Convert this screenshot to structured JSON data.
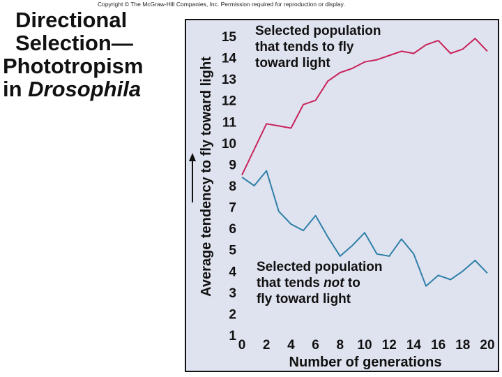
{
  "copyright": "Copyright © The McGraw-Hill Companies, Inc. Permission required for reproduction or display.",
  "title": {
    "line1": "Directional",
    "line2": "Selection—",
    "line3": "Phototropism",
    "line4_prefix": "in ",
    "line4_italic": "Drosophila"
  },
  "colors": {
    "toward": "#c8235a",
    "not_toward": "#2f7fa8",
    "panel_bg": "#dfe3ef"
  },
  "chart_data": {
    "type": "line",
    "xlabel": "Number of generations",
    "ylabel": "Average tendency to fly toward light",
    "xlim": [
      0,
      20
    ],
    "ylim": [
      1,
      15
    ],
    "xticks": [
      0,
      2,
      4,
      6,
      8,
      10,
      12,
      14,
      16,
      18,
      20
    ],
    "yticks": [
      1,
      2,
      3,
      4,
      5,
      6,
      7,
      8,
      9,
      10,
      11,
      12,
      13,
      14,
      15
    ],
    "grid": false,
    "series": [
      {
        "key": "toward",
        "label_lines": [
          "Selected population",
          "that tends to fly",
          "toward light"
        ],
        "x": [
          0,
          1,
          2,
          3,
          4,
          5,
          6,
          7,
          8,
          9,
          10,
          11,
          12,
          13,
          14,
          15,
          16,
          17,
          18,
          19,
          20
        ],
        "y": [
          8.5,
          9.7,
          10.9,
          10.8,
          10.7,
          11.8,
          12.0,
          12.9,
          13.3,
          13.5,
          13.8,
          13.9,
          14.1,
          14.3,
          14.2,
          14.6,
          14.8,
          14.2,
          14.4,
          14.9,
          14.3
        ]
      },
      {
        "key": "not_toward",
        "label_lines": [
          "Selected population",
          "that tends ",
          "not",
          " to",
          "fly toward light"
        ],
        "x": [
          0,
          1,
          2,
          3,
          4,
          5,
          6,
          7,
          8,
          9,
          10,
          11,
          12,
          13,
          14,
          15,
          16,
          17,
          18,
          19,
          20
        ],
        "y": [
          8.4,
          8.0,
          8.7,
          6.8,
          6.2,
          5.9,
          6.6,
          5.6,
          4.7,
          5.2,
          5.8,
          4.8,
          4.7,
          5.5,
          4.8,
          3.3,
          3.8,
          3.6,
          4.0,
          4.5,
          3.9
        ]
      }
    ]
  }
}
